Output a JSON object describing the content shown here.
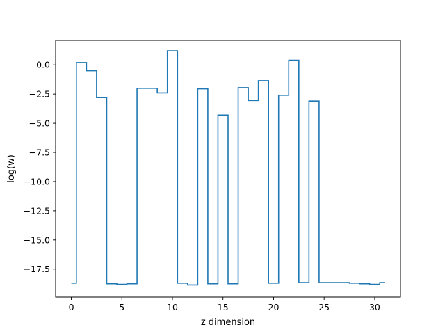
{
  "chart_data": {
    "type": "line",
    "drawstyle": "steps-mid",
    "xlabel": "z dimension",
    "ylabel": "log(w)",
    "xlim": [
      -1.55,
      32.55
    ],
    "ylim": [
      -19.9,
      2.1
    ],
    "xticks": [
      0,
      5,
      10,
      15,
      20,
      25,
      30
    ],
    "xtick_labels": [
      "0",
      "5",
      "10",
      "15",
      "20",
      "25",
      "30"
    ],
    "yticks": [
      0.0,
      -2.5,
      -5.0,
      -7.5,
      -10.0,
      -12.5,
      -15.0,
      -17.5
    ],
    "ytick_labels": [
      "0.0",
      "−2.5",
      "−5.0",
      "−7.5",
      "−10.0",
      "−12.5",
      "−15.0",
      "−17.5"
    ],
    "grid": false,
    "line_color": "#1f77b4",
    "series": [
      {
        "x": [
          0,
          1,
          2,
          3,
          4,
          5,
          6,
          7,
          8,
          9,
          10,
          11,
          12,
          13,
          14,
          15,
          16,
          17,
          18,
          19,
          20,
          21,
          22,
          23,
          24,
          25,
          26,
          27,
          28,
          29,
          30,
          31
        ],
        "values": [
          -18.7,
          0.2,
          -0.5,
          -2.8,
          -18.75,
          -18.8,
          -18.75,
          -2.0,
          -2.0,
          -2.4,
          1.2,
          -18.7,
          -18.85,
          -2.05,
          -18.75,
          -4.3,
          -18.75,
          -1.95,
          -3.05,
          -1.35,
          -18.7,
          -2.6,
          0.4,
          -18.65,
          -3.1,
          -18.65,
          -18.65,
          -18.65,
          -18.7,
          -18.75,
          -18.8,
          -18.65
        ]
      }
    ]
  }
}
